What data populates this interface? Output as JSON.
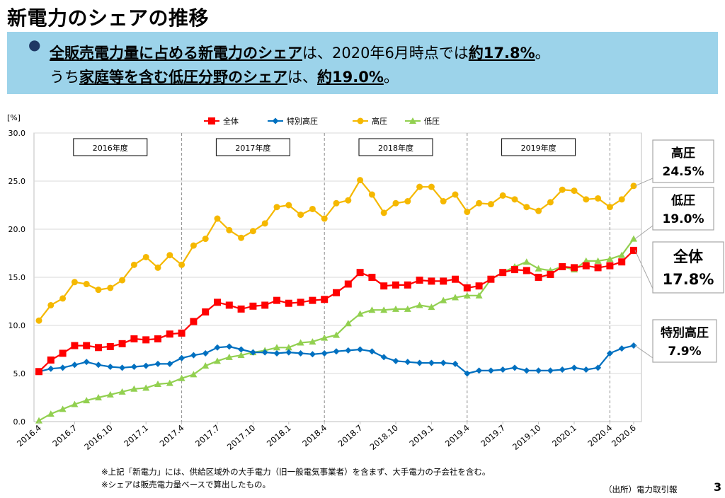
{
  "slide": {
    "title": "新電力のシェアの推移",
    "bullet": "●",
    "summary_line1": {
      "u1": "全販売電力量に占める新電力のシェア",
      "t1": "は、2020年6月時点では",
      "u2": "約17.8%",
      "t2": "。"
    },
    "summary_line2": {
      "t1": "うち",
      "u1": "家庭等を含む低圧分野のシェア",
      "t2": "は、",
      "u2": "約19.0%",
      "t3": "。"
    },
    "notes": [
      "※上記「新電力」には、供給区域外の大手電力（旧一般電気事業者）を含まず、大手電力の子会社を含む。",
      "※シェアは販売電力量ベースで算出したもの。"
    ],
    "source": "（出所）電力取引報",
    "page_number": "3"
  },
  "chart_data": {
    "type": "line",
    "ylabel": "[%]",
    "ylim": [
      0,
      30
    ],
    "yticks": [
      "0.0",
      "5.0",
      "10.0",
      "15.0",
      "20.0",
      "25.0",
      "30.0"
    ],
    "xtick_labels": [
      "2016.4",
      "2016.7",
      "2016.10",
      "2017.1",
      "2017.4",
      "2017.7",
      "2017.10",
      "2018.1",
      "2018.4",
      "2018.7",
      "2018.10",
      "2019.1",
      "2019.4",
      "2019.7",
      "2019.10",
      "2020.1",
      "2020.4",
      "2020.6"
    ],
    "x_start": "2016.4",
    "x_end": "2020.6",
    "legend_position": "top-center",
    "fiscal_year_labels": [
      "2016年度",
      "2017年度",
      "2018年度",
      "2019年度"
    ],
    "fiscal_year_dividers": [
      "2017.4",
      "2018.4",
      "2019.4",
      "2020.4"
    ],
    "series": [
      {
        "name": "全体",
        "color": "#ff0000",
        "marker": "square",
        "values": [
          5.2,
          6.4,
          7.1,
          7.9,
          7.9,
          7.7,
          7.8,
          8.1,
          8.6,
          8.5,
          8.6,
          9.1,
          9.2,
          10.4,
          11.4,
          12.4,
          12.1,
          11.7,
          12.0,
          12.1,
          12.6,
          12.3,
          12.4,
          12.6,
          12.7,
          13.4,
          14.3,
          15.5,
          15.0,
          14.1,
          14.2,
          14.2,
          14.7,
          14.6,
          14.6,
          14.8,
          13.9,
          14.1,
          14.8,
          15.5,
          15.8,
          15.7,
          15.0,
          15.3,
          16.1,
          16.0,
          16.2,
          16.0,
          16.2,
          16.6,
          17.8
        ]
      },
      {
        "name": "特別高圧",
        "color": "#0070c0",
        "marker": "diamond",
        "values": [
          5.2,
          5.5,
          5.6,
          5.9,
          6.2,
          5.9,
          5.7,
          5.6,
          5.7,
          5.8,
          6.0,
          6.0,
          6.6,
          6.9,
          7.1,
          7.7,
          7.8,
          7.5,
          7.2,
          7.2,
          7.1,
          7.2,
          7.1,
          7.0,
          7.1,
          7.3,
          7.4,
          7.5,
          7.3,
          6.7,
          6.3,
          6.2,
          6.1,
          6.1,
          6.1,
          6.0,
          5.0,
          5.3,
          5.3,
          5.4,
          5.6,
          5.3,
          5.3,
          5.3,
          5.4,
          5.6,
          5.4,
          5.6,
          7.1,
          7.6,
          7.9
        ]
      },
      {
        "name": "高圧",
        "color": "#f5b800",
        "marker": "circle",
        "values": [
          10.5,
          12.1,
          12.8,
          14.5,
          14.3,
          13.7,
          13.9,
          14.7,
          16.3,
          17.1,
          16.0,
          17.3,
          16.3,
          18.3,
          19.0,
          21.1,
          19.9,
          19.1,
          19.8,
          20.6,
          22.3,
          22.5,
          21.5,
          22.1,
          21.1,
          22.7,
          23.0,
          25.1,
          23.6,
          21.7,
          22.7,
          22.9,
          24.4,
          24.4,
          22.9,
          23.6,
          21.8,
          22.7,
          22.6,
          23.5,
          23.1,
          22.3,
          21.9,
          22.8,
          24.1,
          24.0,
          23.1,
          23.2,
          22.3,
          23.1,
          24.5
        ]
      },
      {
        "name": "低圧",
        "color": "#92d050",
        "marker": "triangle",
        "values": [
          0.1,
          0.8,
          1.3,
          1.8,
          2.2,
          2.5,
          2.8,
          3.1,
          3.4,
          3.5,
          3.9,
          4.0,
          4.5,
          4.9,
          5.8,
          6.3,
          6.7,
          6.9,
          7.2,
          7.4,
          7.7,
          7.7,
          8.2,
          8.3,
          8.7,
          9.0,
          10.2,
          11.2,
          11.6,
          11.6,
          11.7,
          11.7,
          12.1,
          11.9,
          12.6,
          12.9,
          13.1,
          13.1,
          14.8,
          15.5,
          16.1,
          16.6,
          15.9,
          15.7,
          16.1,
          15.8,
          16.7,
          16.7,
          16.9,
          17.3,
          19.0
        ]
      }
    ],
    "callouts": [
      {
        "series": "高圧",
        "label": "高圧",
        "value": "24.5%"
      },
      {
        "series": "低圧",
        "label": "低圧",
        "value": "19.0%"
      },
      {
        "series": "全体",
        "label": "全体",
        "value": "17.8%"
      },
      {
        "series": "特別高圧",
        "label": "特別高圧",
        "value": "7.9%"
      }
    ]
  }
}
